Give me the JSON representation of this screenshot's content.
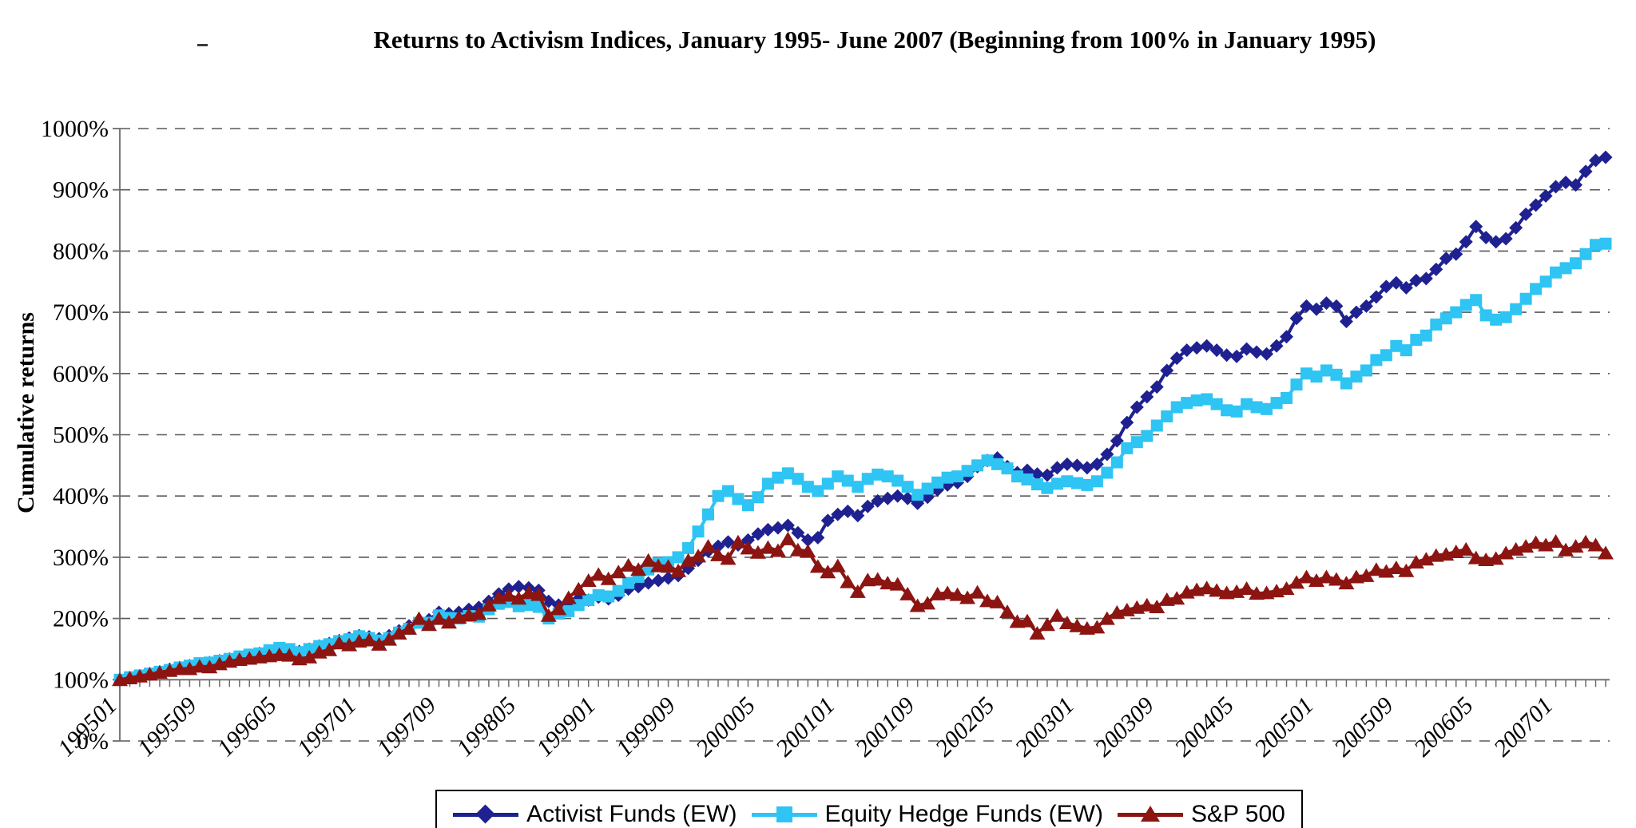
{
  "title": "Returns to Activism Indices, January 1995- June 2007 (Beginning from 100% in January 1995)",
  "y_axis": {
    "title": "Cumulative returns",
    "tick_labels": [
      "0%",
      "100%",
      "200%",
      "300%",
      "400%",
      "500%",
      "600%",
      "700%",
      "800%",
      "900%",
      "1000%"
    ],
    "min": 0,
    "max": 1000,
    "gridline_style": "dashed",
    "category_axis_crosses_at": 100
  },
  "x_axis": {
    "tick_step": 8,
    "tick_labels": [
      "199501",
      "199509",
      "199605",
      "199701",
      "199709",
      "199805",
      "199901",
      "199909",
      "200005",
      "200101",
      "200109",
      "200205",
      "200301",
      "200309",
      "200405",
      "200501",
      "200509",
      "200605",
      "200701"
    ]
  },
  "colors": {
    "activist": "#1F2191",
    "equity_hedge": "#2EC4F3",
    "sp500": "#8C1512",
    "grid": "#595959",
    "axis": "#6b6b6b"
  },
  "chart_data": {
    "type": "line",
    "title": "Returns to Activism Indices, January 1995- June 2007 (Beginning from 100% in January 1995)",
    "xlabel": "",
    "ylabel": "Cumulative returns",
    "ylim": [
      0,
      1000
    ],
    "grid": "horizontal-dashed",
    "legend_position": "bottom",
    "x": [
      "199501",
      "199502",
      "199503",
      "199504",
      "199505",
      "199506",
      "199507",
      "199508",
      "199509",
      "199510",
      "199511",
      "199512",
      "199601",
      "199602",
      "199603",
      "199604",
      "199605",
      "199606",
      "199607",
      "199608",
      "199609",
      "199610",
      "199611",
      "199612",
      "199701",
      "199702",
      "199703",
      "199704",
      "199705",
      "199706",
      "199707",
      "199708",
      "199709",
      "199710",
      "199711",
      "199712",
      "199801",
      "199802",
      "199803",
      "199804",
      "199805",
      "199806",
      "199807",
      "199808",
      "199809",
      "199810",
      "199811",
      "199812",
      "199901",
      "199902",
      "199903",
      "199904",
      "199905",
      "199906",
      "199907",
      "199908",
      "199909",
      "199910",
      "199911",
      "199912",
      "200001",
      "200002",
      "200003",
      "200004",
      "200005",
      "200006",
      "200007",
      "200008",
      "200009",
      "200010",
      "200011",
      "200012",
      "200101",
      "200102",
      "200103",
      "200104",
      "200105",
      "200106",
      "200107",
      "200108",
      "200109",
      "200110",
      "200111",
      "200112",
      "200201",
      "200202",
      "200203",
      "200204",
      "200205",
      "200206",
      "200207",
      "200208",
      "200209",
      "200210",
      "200211",
      "200212",
      "200301",
      "200302",
      "200303",
      "200304",
      "200305",
      "200306",
      "200307",
      "200308",
      "200309",
      "200310",
      "200311",
      "200312",
      "200401",
      "200402",
      "200403",
      "200404",
      "200405",
      "200406",
      "200407",
      "200408",
      "200409",
      "200410",
      "200411",
      "200412",
      "200501",
      "200502",
      "200503",
      "200504",
      "200505",
      "200506",
      "200507",
      "200508",
      "200509",
      "200510",
      "200511",
      "200512",
      "200601",
      "200602",
      "200603",
      "200604",
      "200605",
      "200606",
      "200607",
      "200608",
      "200609",
      "200610",
      "200611",
      "200612",
      "200701",
      "200702",
      "200703",
      "200704",
      "200705",
      "200706"
    ],
    "series": [
      {
        "name": "Activist Funds (EW)",
        "color": "#1F2191",
        "marker": "diamond",
        "values": [
          100,
          103,
          106,
          110,
          113,
          117,
          120,
          123,
          126,
          128,
          131,
          134,
          137,
          140,
          143,
          147,
          150,
          149,
          146,
          150,
          155,
          159,
          164,
          168,
          172,
          170,
          167,
          172,
          180,
          188,
          196,
          198,
          210,
          208,
          210,
          215,
          218,
          228,
          240,
          248,
          252,
          250,
          246,
          228,
          222,
          225,
          232,
          230,
          235,
          232,
          238,
          248,
          252,
          258,
          262,
          266,
          270,
          282,
          295,
          310,
          318,
          325,
          320,
          328,
          338,
          345,
          348,
          352,
          340,
          328,
          332,
          360,
          370,
          375,
          368,
          383,
          392,
          396,
          400,
          396,
          388,
          398,
          410,
          418,
          422,
          432,
          448,
          458,
          462,
          448,
          438,
          442,
          436,
          434,
          446,
          452,
          450,
          446,
          452,
          468,
          490,
          520,
          545,
          562,
          578,
          605,
          625,
          638,
          642,
          645,
          638,
          630,
          628,
          640,
          635,
          632,
          645,
          660,
          690,
          710,
          705,
          715,
          710,
          685,
          700,
          710,
          725,
          742,
          748,
          740,
          752,
          755,
          770,
          788,
          795,
          815,
          840,
          822,
          815,
          820,
          838,
          860,
          875,
          890,
          905,
          912,
          908,
          930,
          948,
          953
        ]
      },
      {
        "name": "Equity Hedge Funds (EW)",
        "color": "#2EC4F3",
        "marker": "square",
        "values": [
          100,
          104,
          107,
          110,
          113,
          116,
          120,
          123,
          127,
          128,
          131,
          134,
          138,
          141,
          143,
          148,
          152,
          150,
          145,
          150,
          155,
          158,
          163,
          166,
          171,
          168,
          164,
          168,
          177,
          183,
          193,
          193,
          205,
          201,
          200,
          204,
          203,
          215,
          224,
          227,
          220,
          222,
          219,
          200,
          208,
          212,
          222,
          230,
          238,
          236,
          245,
          258,
          268,
          280,
          290,
          292,
          300,
          315,
          342,
          370,
          400,
          408,
          395,
          385,
          398,
          420,
          430,
          437,
          428,
          415,
          408,
          420,
          432,
          425,
          415,
          428,
          435,
          432,
          425,
          415,
          402,
          412,
          422,
          430,
          432,
          441,
          450,
          458,
          452,
          445,
          432,
          427,
          419,
          413,
          420,
          424,
          421,
          418,
          424,
          438,
          455,
          478,
          488,
          498,
          515,
          530,
          545,
          552,
          556,
          558,
          550,
          540,
          538,
          550,
          545,
          542,
          552,
          560,
          582,
          600,
          595,
          605,
          598,
          584,
          595,
          605,
          622,
          630,
          645,
          638,
          655,
          662,
          680,
          690,
          700,
          712,
          720,
          695,
          688,
          692,
          705,
          722,
          738,
          750,
          765,
          772,
          780,
          795,
          810,
          812
        ]
      },
      {
        "name": "S&P 500",
        "color": "#8C1512",
        "marker": "triangle",
        "values": [
          100,
          103,
          106,
          109,
          112,
          115,
          118,
          118,
          122,
          121,
          126,
          130,
          133,
          135,
          137,
          139,
          141,
          140,
          134,
          137,
          145,
          149,
          160,
          157,
          163,
          165,
          158,
          166,
          176,
          184,
          200,
          190,
          200,
          194,
          202,
          206,
          208,
          222,
          234,
          238,
          233,
          242,
          239,
          205,
          216,
          234,
          248,
          262,
          272,
          265,
          276,
          287,
          280,
          295,
          286,
          285,
          278,
          295,
          302,
          318,
          304,
          298,
          325,
          315,
          308,
          316,
          311,
          330,
          312,
          310,
          285,
          276,
          286,
          260,
          244,
          263,
          264,
          258,
          256,
          240,
          221,
          225,
          240,
          242,
          239,
          234,
          243,
          229,
          227,
          211,
          195,
          196,
          176,
          190,
          205,
          193,
          188,
          184,
          186,
          200,
          210,
          214,
          218,
          222,
          219,
          231,
          233,
          243,
          247,
          250,
          246,
          242,
          244,
          249,
          241,
          242,
          245,
          249,
          259,
          268,
          262,
          268,
          264,
          258,
          268,
          270,
          280,
          277,
          283,
          278,
          292,
          297,
          303,
          305,
          309,
          313,
          299,
          296,
          298,
          307,
          313,
          318,
          324,
          320,
          326,
          312,
          318,
          325,
          320,
          307
        ]
      }
    ]
  }
}
